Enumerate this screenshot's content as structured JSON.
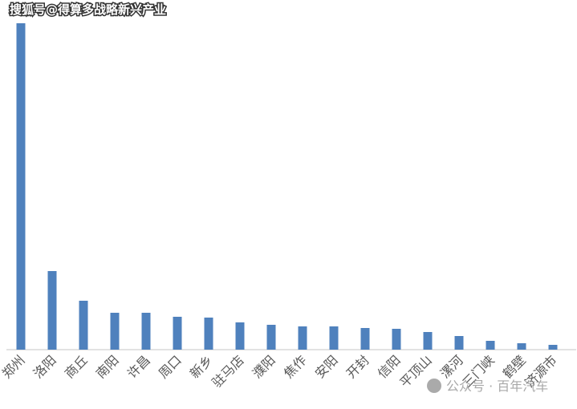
{
  "chart_data": {
    "type": "bar",
    "title": "搜狐号@得算多战略新兴产业",
    "watermark": "公众号 · 百年汽车",
    "categories": [
      "郑州",
      "洛阳",
      "商丘",
      "南阳",
      "许昌",
      "周口",
      "新乡",
      "驻马店",
      "濮阳",
      "焦作",
      "安阳",
      "开封",
      "信阳",
      "平顶山",
      "漯河",
      "三门峡",
      "鹤壁",
      "济源市"
    ],
    "values": [
      407,
      98,
      61,
      46,
      46,
      41,
      40,
      34,
      31,
      29,
      29,
      27,
      26,
      22,
      17,
      11,
      8,
      6
    ],
    "color": "#4f81bd",
    "ylim": [
      0,
      407
    ]
  }
}
